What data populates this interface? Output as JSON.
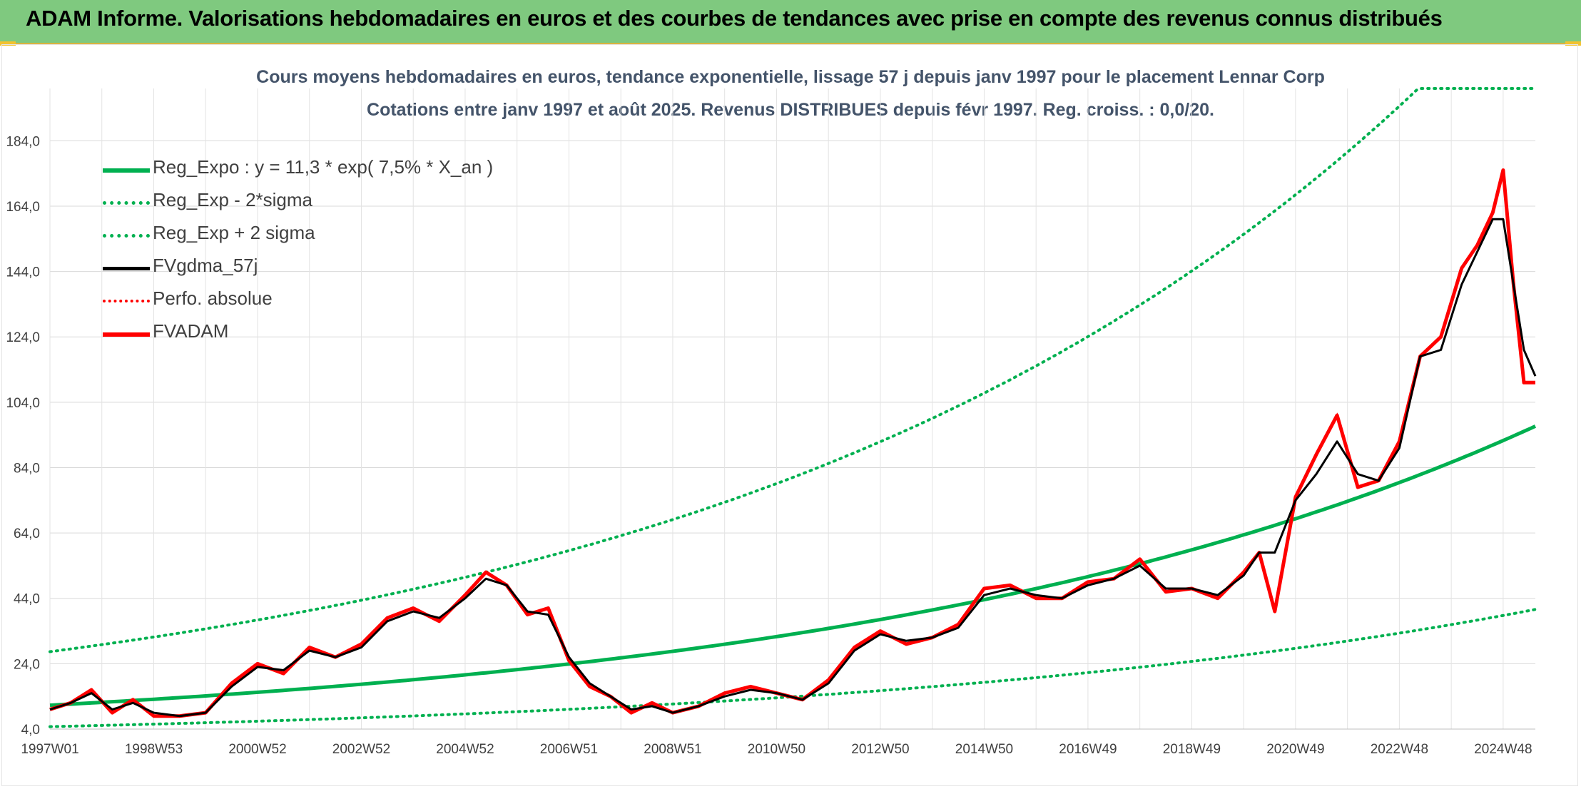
{
  "header": {
    "title": "ADAM Informe. Valorisations hebdomadaires en euros et des courbes de tendances avec prise en compte des revenus connus distribués",
    "background": "#7fc97f"
  },
  "chart_data": {
    "type": "line",
    "title": "Cours moyens hebdomadaires en euros, tendance exponentielle, lissage 57 j depuis janv 1997 pour le placement Lennar Corp",
    "subtitle": "Cotations entre janv 1997 et août 2025. Revenus DISTRIBUES depuis févr 1997. Reg. croiss. : 0,0/20.",
    "xlabel": "",
    "ylabel": "",
    "ylim": [
      4.0,
      200.0
    ],
    "yticks": [
      "4,0",
      "24,0",
      "44,0",
      "64,0",
      "84,0",
      "104,0",
      "124,0",
      "144,0",
      "164,0",
      "184,0"
    ],
    "ytick_values": [
      4,
      24,
      44,
      64,
      84,
      104,
      124,
      144,
      164,
      184
    ],
    "xlim": [
      1997.0,
      2025.62
    ],
    "xticks": [
      "1997W01",
      "1998W53",
      "2000W52",
      "2002W52",
      "2004W52",
      "2006W51",
      "2008W51",
      "2010W50",
      "2012W50",
      "2014W50",
      "2016W49",
      "2018W49",
      "2020W49",
      "2022W48",
      "2024W48"
    ],
    "xtick_values": [
      1997.0,
      1999.0,
      2001.0,
      2003.0,
      2005.0,
      2007.0,
      2009.0,
      2011.0,
      2013.0,
      2015.0,
      2017.0,
      2019.0,
      2021.0,
      2023.0,
      2025.0
    ],
    "grid": true,
    "legend_position": "top-left",
    "regression": {
      "a": 11.3,
      "rate": 0.075,
      "x0": 1997.0,
      "sigma_down_factor": 0.42,
      "sigma_up_factor": 2.45,
      "cap": 200.0
    },
    "series": [
      {
        "name": "Reg_Expo : y = 11,3 * exp( 7,5% *  X_an )",
        "color": "#00b050",
        "style": "solid",
        "width": 5
      },
      {
        "name": "Reg_Exp - 2*sigma",
        "color": "#00b050",
        "style": "dotted",
        "width": 4
      },
      {
        "name": "Reg_Exp + 2 sigma",
        "color": "#00b050",
        "style": "dotted",
        "width": 4
      },
      {
        "name": "FVgdma_57j",
        "color": "#000000",
        "style": "solid",
        "width": 3,
        "x": [
          1997.0,
          1997.4,
          1997.8,
          1998.2,
          1998.6,
          1999.0,
          1999.5,
          2000.0,
          2000.5,
          2001.0,
          2001.5,
          2002.0,
          2002.5,
          2003.0,
          2003.5,
          2004.0,
          2004.5,
          2005.0,
          2005.4,
          2005.8,
          2006.2,
          2006.6,
          2007.0,
          2007.4,
          2007.8,
          2008.2,
          2008.6,
          2009.0,
          2009.5,
          2010.0,
          2010.5,
          2011.0,
          2011.5,
          2012.0,
          2012.5,
          2013.0,
          2013.5,
          2014.0,
          2014.5,
          2015.0,
          2015.5,
          2016.0,
          2016.5,
          2017.0,
          2017.5,
          2018.0,
          2018.5,
          2019.0,
          2019.5,
          2020.0,
          2020.3,
          2020.6,
          2021.0,
          2021.4,
          2021.8,
          2022.2,
          2022.6,
          2023.0,
          2023.4,
          2023.8,
          2024.2,
          2024.5,
          2024.8,
          2025.0,
          2025.2,
          2025.4,
          2025.62
        ],
        "y": [
          10,
          12,
          15,
          10,
          12,
          9,
          8,
          9,
          17,
          23,
          22,
          28,
          26,
          29,
          37,
          40,
          38,
          44,
          50,
          48,
          40,
          39,
          26,
          18,
          14,
          10,
          11,
          9,
          11,
          14,
          16,
          15,
          13,
          18,
          28,
          33,
          31,
          32,
          35,
          45,
          47,
          45,
          44,
          48,
          50,
          54,
          47,
          47,
          45,
          51,
          58,
          58,
          74,
          82,
          92,
          82,
          80,
          90,
          118,
          120,
          140,
          150,
          160,
          160,
          140,
          120,
          112
        ]
      },
      {
        "name": "Perfo. absolue",
        "color": "#ff0000",
        "style": "dotted",
        "width": 3,
        "x": [
          1997.0,
          1997.4,
          1997.8,
          1998.2,
          1998.6,
          1999.0,
          1999.5,
          2000.0,
          2000.5,
          2001.0,
          2001.5,
          2002.0,
          2002.5,
          2003.0,
          2003.5,
          2004.0,
          2004.5,
          2005.0,
          2005.4,
          2005.8,
          2006.2,
          2006.6,
          2007.0,
          2007.4,
          2007.8,
          2008.2,
          2008.6,
          2009.0,
          2009.5,
          2010.0,
          2010.5,
          2011.0,
          2011.5,
          2012.0,
          2012.5,
          2013.0,
          2013.5,
          2014.0,
          2014.5,
          2015.0,
          2015.5,
          2016.0,
          2016.5,
          2017.0,
          2017.5,
          2018.0,
          2018.5,
          2019.0,
          2019.5,
          2020.0,
          2020.3,
          2020.6,
          2021.0,
          2021.4,
          2021.8,
          2022.2,
          2022.6,
          2023.0,
          2023.4,
          2023.8,
          2024.2,
          2024.5,
          2024.8,
          2025.0,
          2025.2,
          2025.4,
          2025.62
        ],
        "y": [
          10,
          12,
          16,
          9,
          13,
          8,
          8,
          9,
          18,
          24,
          21,
          29,
          26,
          30,
          38,
          41,
          37,
          45,
          52,
          48,
          39,
          41,
          25,
          17,
          14,
          9,
          12,
          9,
          11,
          15,
          17,
          15,
          13,
          19,
          29,
          34,
          30,
          32,
          36,
          47,
          48,
          44,
          44,
          49,
          50,
          56,
          46,
          47,
          44,
          52,
          58,
          40,
          75,
          88,
          100,
          78,
          80,
          92,
          118,
          124,
          145,
          152,
          162,
          175,
          140,
          110,
          110
        ]
      },
      {
        "name": "FVADAM",
        "color": "#ff0000",
        "style": "solid",
        "width": 5,
        "x": [
          1997.0,
          1997.4,
          1997.8,
          1998.2,
          1998.6,
          1999.0,
          1999.5,
          2000.0,
          2000.5,
          2001.0,
          2001.5,
          2002.0,
          2002.5,
          2003.0,
          2003.5,
          2004.0,
          2004.5,
          2005.0,
          2005.4,
          2005.8,
          2006.2,
          2006.6,
          2007.0,
          2007.4,
          2007.8,
          2008.2,
          2008.6,
          2009.0,
          2009.5,
          2010.0,
          2010.5,
          2011.0,
          2011.5,
          2012.0,
          2012.5,
          2013.0,
          2013.5,
          2014.0,
          2014.5,
          2015.0,
          2015.5,
          2016.0,
          2016.5,
          2017.0,
          2017.5,
          2018.0,
          2018.5,
          2019.0,
          2019.5,
          2020.0,
          2020.3,
          2020.6,
          2021.0,
          2021.4,
          2021.8,
          2022.2,
          2022.6,
          2023.0,
          2023.4,
          2023.8,
          2024.2,
          2024.5,
          2024.8,
          2025.0,
          2025.2,
          2025.4,
          2025.62
        ],
        "y": [
          10,
          12,
          16,
          9,
          13,
          8,
          8,
          9,
          18,
          24,
          21,
          29,
          26,
          30,
          38,
          41,
          37,
          45,
          52,
          48,
          39,
          41,
          25,
          17,
          14,
          9,
          12,
          9,
          11,
          15,
          17,
          15,
          13,
          19,
          29,
          34,
          30,
          32,
          36,
          47,
          48,
          44,
          44,
          49,
          50,
          56,
          46,
          47,
          44,
          52,
          58,
          40,
          75,
          88,
          100,
          78,
          80,
          92,
          118,
          124,
          145,
          152,
          162,
          175,
          140,
          110,
          110
        ]
      }
    ]
  }
}
